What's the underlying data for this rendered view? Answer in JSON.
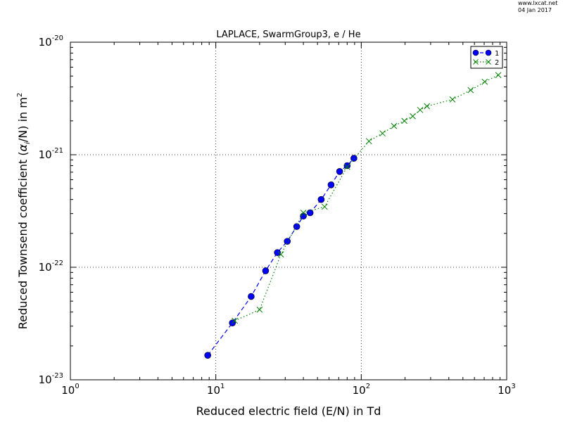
{
  "watermark": {
    "site": "www.lxcat.net",
    "date": "04 Jan 2017"
  },
  "chart_data": {
    "type": "line",
    "title": "LAPLACE, SwarmGroup3, e / He",
    "xlabel": "Reduced electric field (E/N) in Td",
    "ylabel_prefix": "Reduced Townsend coefficient (",
    "ylabel_alpha": "α",
    "ylabel_sub": "i",
    "ylabel_mid": "/N) in m",
    "ylabel_sup": "2",
    "xscale": "log",
    "yscale": "log",
    "xlim": [
      1,
      1000
    ],
    "ylim": [
      1e-23,
      1e-20
    ],
    "grid": true,
    "legend_position": "top-right",
    "x_ticks": [
      {
        "value": 1,
        "base": "10",
        "exp": "0"
      },
      {
        "value": 10,
        "base": "10",
        "exp": "1"
      },
      {
        "value": 100,
        "base": "10",
        "exp": "2"
      },
      {
        "value": 1000,
        "base": "10",
        "exp": "3"
      }
    ],
    "y_ticks": [
      {
        "value": 1e-23,
        "base": "10",
        "exp": "-23"
      },
      {
        "value": 1e-22,
        "base": "10",
        "exp": "-22"
      },
      {
        "value": 1e-21,
        "base": "10",
        "exp": "-21"
      },
      {
        "value": 1e-20,
        "base": "10",
        "exp": "-20"
      }
    ],
    "series": [
      {
        "name": "1",
        "color": "#0000ff",
        "marker": "circle",
        "line": "dashed",
        "x": [
          8.8,
          13.0,
          17.5,
          22.0,
          26.5,
          31.0,
          36.0,
          40.0,
          44.5,
          53.0,
          62.0,
          71.0,
          80.0,
          89.0
        ],
        "y": [
          1.65e-23,
          3.2e-23,
          5.5e-23,
          9.3e-23,
          1.35e-22,
          1.7e-22,
          2.3e-22,
          2.85e-22,
          3.05e-22,
          4e-22,
          5.4e-22,
          7.1e-22,
          8e-22,
          9.3e-22
        ]
      },
      {
        "name": "2",
        "color": "#008000",
        "marker": "x",
        "line": "dotted",
        "x": [
          13.5,
          20.0,
          28.0,
          40.0,
          56.0,
          80.0,
          113.0,
          140.0,
          168.0,
          198.0,
          226.0,
          254.0,
          283.0,
          424.0,
          565.0,
          706.0,
          876.0
        ],
        "y": [
          3.35e-23,
          4.2e-23,
          1.3e-22,
          3.05e-22,
          3.45e-22,
          7.8e-22,
          1.32e-21,
          1.55e-21,
          1.8e-21,
          2e-21,
          2.2e-21,
          2.5e-21,
          2.7e-21,
          3.1e-21,
          3.75e-21,
          4.45e-21,
          5.1e-21
        ]
      }
    ]
  }
}
